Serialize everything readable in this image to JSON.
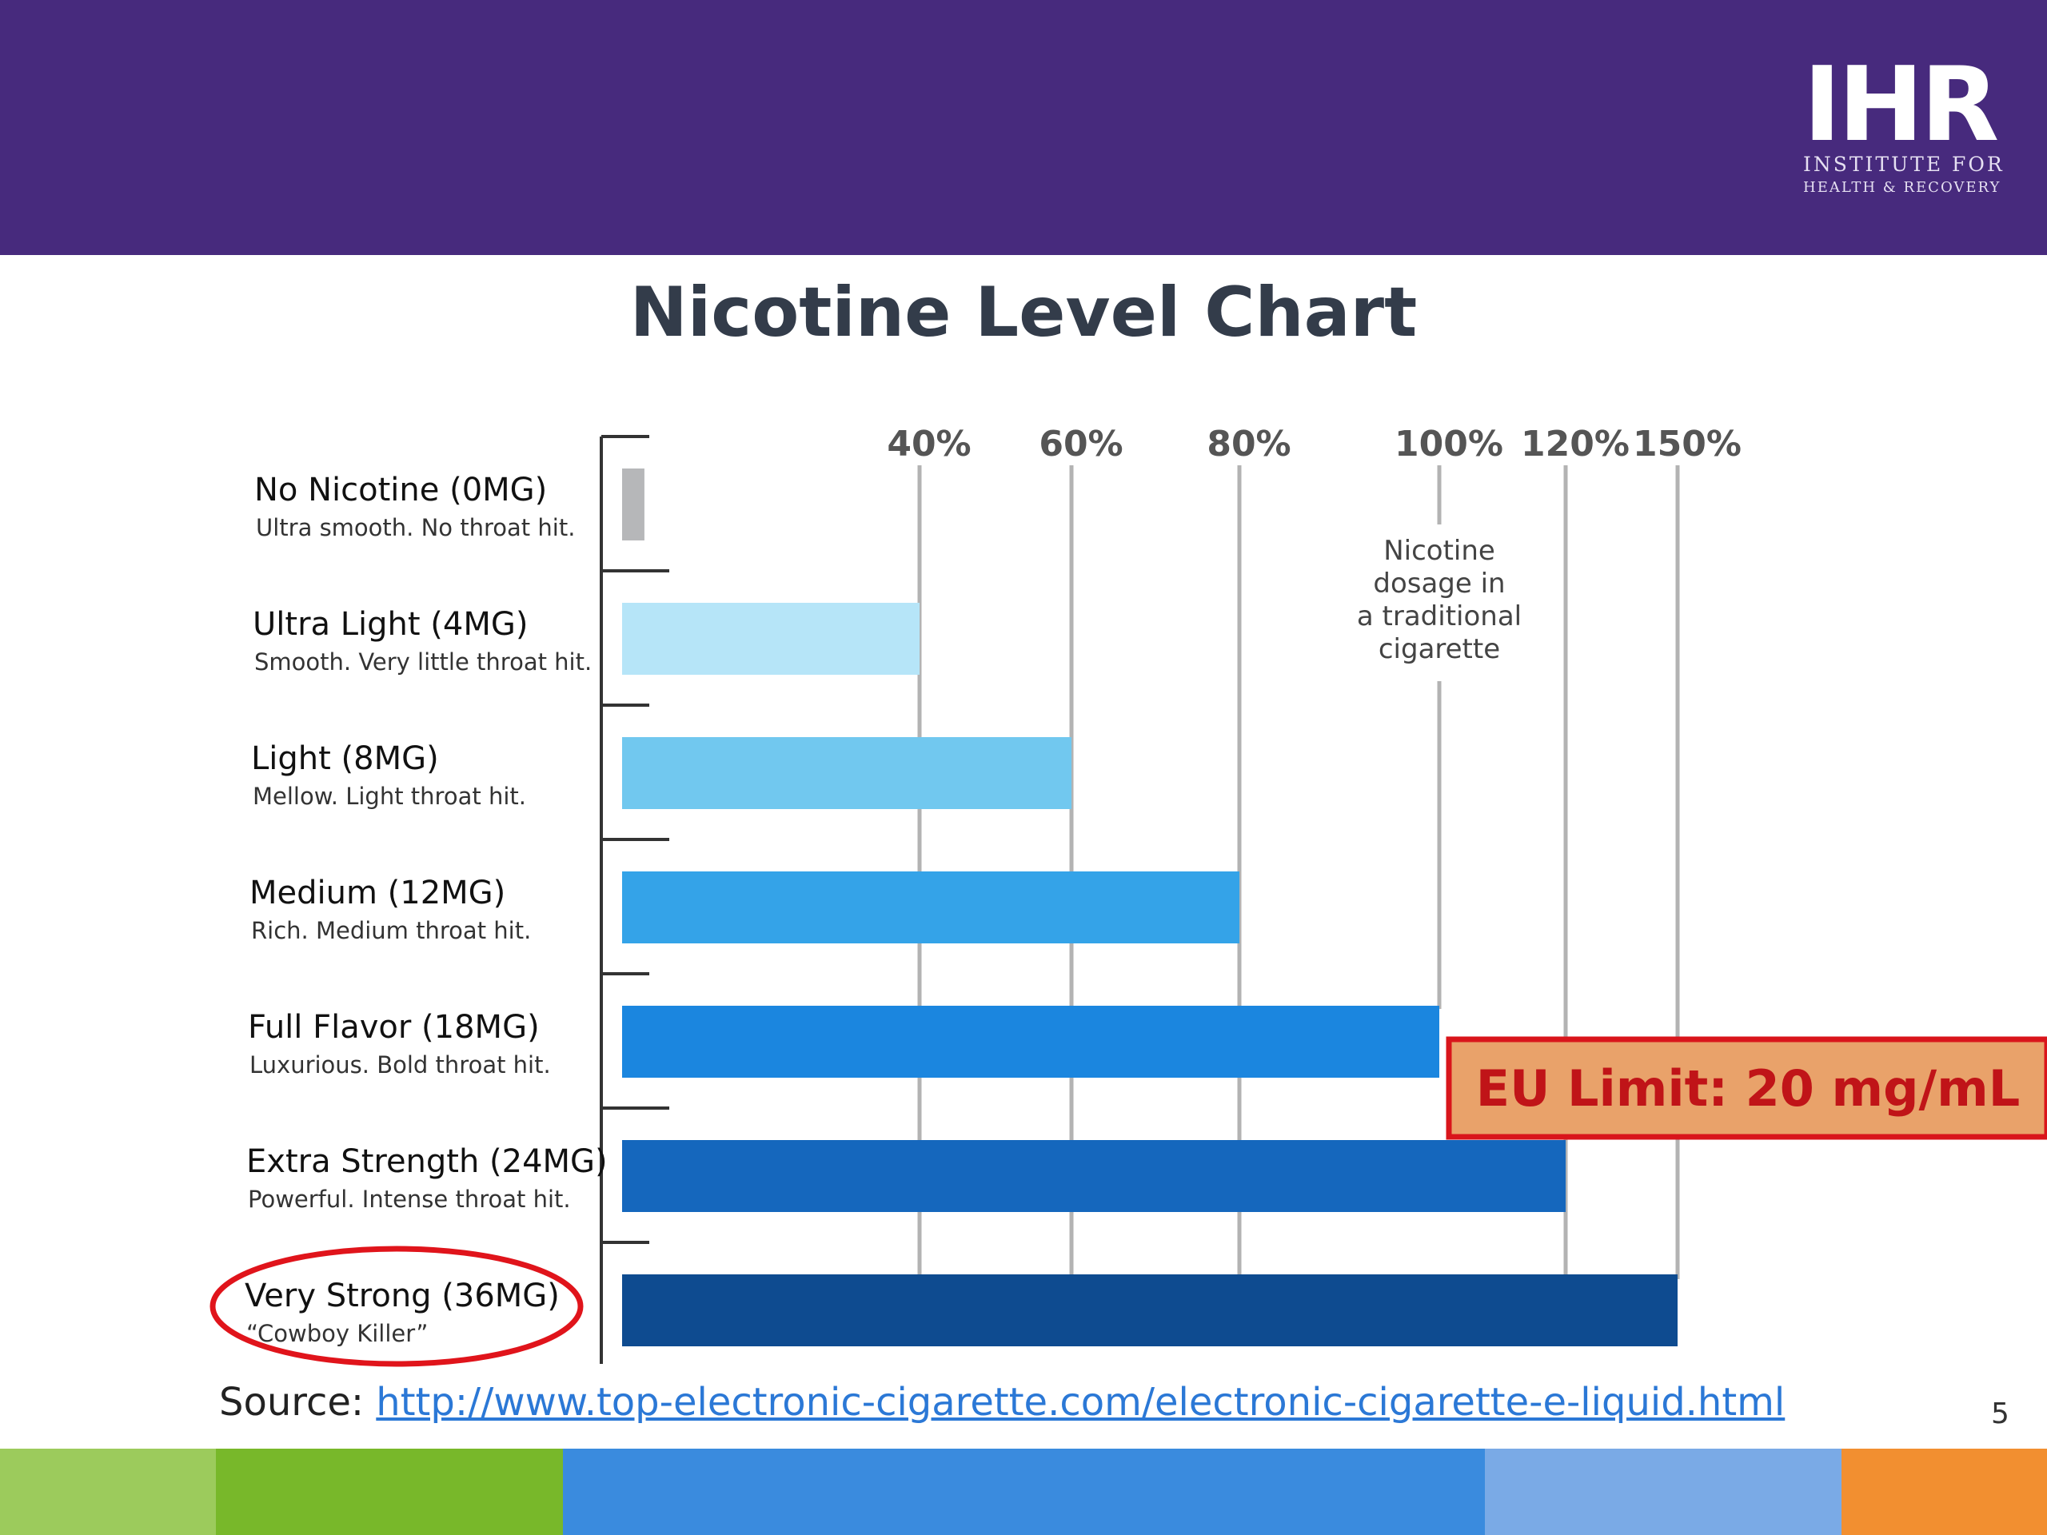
{
  "header": {
    "logo_mark": "IHR",
    "logo_org_line1": "INSTITUTE FOR",
    "logo_org_line2": "HEALTH & RECOVERY"
  },
  "slide": {
    "title": "Nicotine Level Chart",
    "source_label": "Source:",
    "source_url": "http://www.top-electronic-cigarette.com/electronic-cigarette-e-liquid.html",
    "page_number": "5"
  },
  "colors": {
    "header_purple": "#472a7d",
    "footer": [
      "#9ccb5c",
      "#78b82a",
      "#3a8bde",
      "#7aaae6",
      "#f28f30"
    ],
    "eu_box_fill": "#e9a26a",
    "eu_box_border": "#d9151b",
    "eu_text": "#c01418",
    "highlight_ellipse": "#e0141b"
  },
  "chart_data": {
    "type": "bar",
    "orientation": "horizontal",
    "categories": [
      {
        "label": "No Nicotine (0MG)",
        "description": "Ultra smooth. No throat hit.",
        "percent": 3,
        "color": "#b6b7b9"
      },
      {
        "label": "Ultra Light (4MG)",
        "description": "Smooth. Very little throat hit.",
        "percent": 40,
        "color": "#b6e5f8"
      },
      {
        "label": "Light (8MG)",
        "description": "Mellow. Light throat hit.",
        "percent": 60,
        "color": "#71c8ef"
      },
      {
        "label": "Medium (12MG)",
        "description": "Rich. Medium throat hit.",
        "percent": 80,
        "color": "#34a3e8"
      },
      {
        "label": "Full Flavor (18MG)",
        "description": "Luxurious. Bold throat hit.",
        "percent": 100,
        "color": "#1b86df"
      },
      {
        "label": "Extra Strength (24MG)",
        "description": "Powerful. Intense throat hit.",
        "percent": 120,
        "color": "#1567bd"
      },
      {
        "label": "Very Strong (36MG)",
        "description": "“Cowboy Killer”",
        "percent": 150,
        "color": "#0e4b90"
      }
    ],
    "reference_lines": [
      {
        "label": "40%",
        "value": 40
      },
      {
        "label": "60%",
        "value": 60
      },
      {
        "label": "80%",
        "value": 80
      },
      {
        "label": "100%",
        "value": 100
      },
      {
        "label": "120%",
        "value": 120
      },
      {
        "label": "150%",
        "value": 150
      }
    ],
    "annotation": "Nicotine dosage in a traditional cigarette",
    "annotation_lines": [
      "Nicotine",
      "dosage in",
      "a traditional",
      "cigarette"
    ],
    "callout": "EU Limit: 20 mg/mL",
    "highlighted_category": "Very Strong (36MG)",
    "xlim": [
      0,
      150
    ]
  }
}
